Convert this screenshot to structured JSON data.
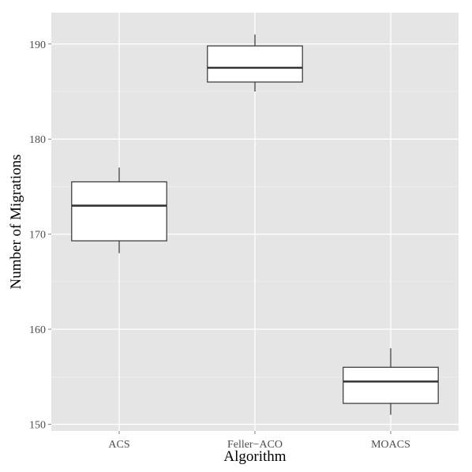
{
  "chart_data": {
    "type": "boxplot",
    "xlabel": "Algorithm",
    "ylabel": "Number of Migrations",
    "categories": [
      "ACS",
      "Feller−ACO",
      "MOACS"
    ],
    "boxes": [
      {
        "category": "ACS",
        "min": 168,
        "q1": 169.3,
        "median": 173,
        "q3": 175.5,
        "max": 177
      },
      {
        "category": "Feller−ACO",
        "min": 185,
        "q1": 186,
        "median": 187.5,
        "q3": 189.8,
        "max": 191
      },
      {
        "category": "MOACS",
        "min": 151,
        "q1": 152.2,
        "median": 154.5,
        "q3": 156,
        "max": 158
      }
    ],
    "yticks": [
      150,
      160,
      170,
      180,
      190
    ],
    "ylim": [
      149.3,
      193.3
    ],
    "grid": true,
    "colors": {
      "panel": "#e5e5e5",
      "grid": "#ffffff",
      "box_fill": "#ffffff",
      "box_stroke": "#333333",
      "tick_text": "#4d4d4d"
    }
  }
}
